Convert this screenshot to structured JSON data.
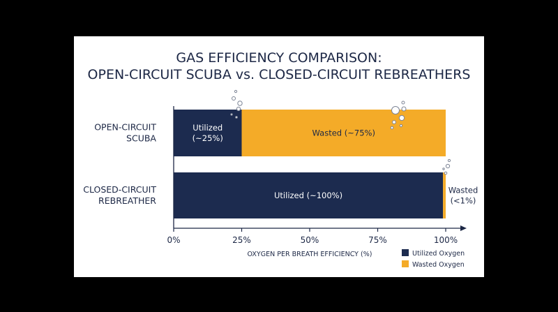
{
  "chart_data": {
    "type": "bar",
    "orientation": "horizontal",
    "stacked": true,
    "title_lines": [
      "GAS EFFICIENCY COMPARISON:",
      "OPEN-CIRCUIT SCUBA vs. CLOSED-CIRCUIT REBREATHERS"
    ],
    "categories": [
      {
        "label_lines": [
          "OPEN-CIRCUIT",
          "SCUBA"
        ]
      },
      {
        "label_lines": [
          "CLOSED-CIRCUIT",
          "REBREATHER"
        ]
      }
    ],
    "series": [
      {
        "name": "Utilized Oxygen",
        "color": "#1c2b4f",
        "values": [
          25,
          99
        ],
        "labels": [
          [
            "Utilized",
            "(~25%)"
          ],
          [
            "Utilized (~100%)"
          ]
        ]
      },
      {
        "name": "Wasted Oxygen",
        "color": "#f4ab28",
        "values": [
          75,
          1
        ],
        "labels": [
          [
            "Wasted (~75%)"
          ],
          [
            "Wasted",
            "(<1%)"
          ]
        ]
      }
    ],
    "xlabel": "OXYGEN PER BREATH EFFICIENCY (%)",
    "xlim": [
      0,
      100
    ],
    "xticks": [
      "0%",
      "25%",
      "50%",
      "75%",
      "100%"
    ],
    "xtick_values": [
      0,
      25,
      50,
      75,
      100
    ],
    "legend_position": "bottom-right",
    "grid": false
  }
}
